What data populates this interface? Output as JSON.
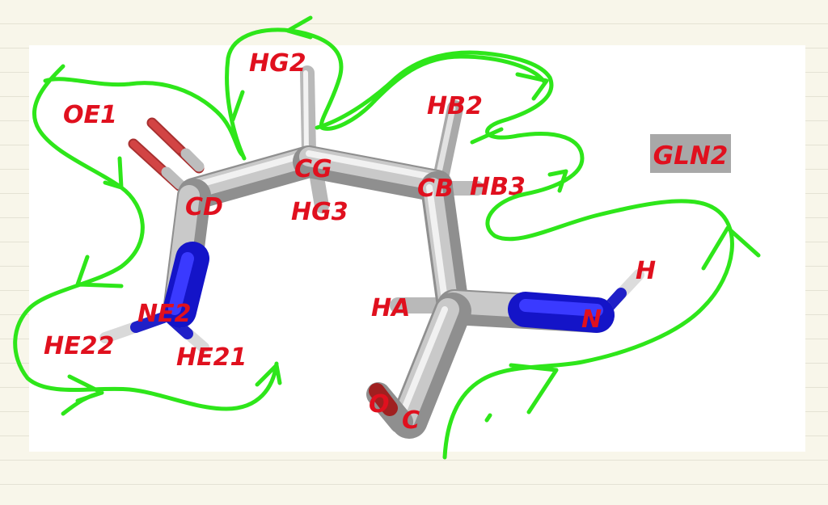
{
  "residue_label": "GLN2",
  "atoms": {
    "oe1": "OE1",
    "hg2": "HG2",
    "hb2": "HB2",
    "cd": "CD",
    "cg": "CG",
    "cb": "CB",
    "hb3": "HB3",
    "hg3": "HG3",
    "ne2": "NE2",
    "he22": "HE22",
    "he21": "HE21",
    "ha": "HA",
    "h": "H",
    "n": "N",
    "o": "O",
    "c": "C"
  },
  "colors": {
    "carbon": "#c8c8c8",
    "nitrogen": "#1a1ad6",
    "oxygen": "#c03030",
    "hydrogen": "#e6e6e6",
    "label": "#e0101e",
    "annotation": "#2ee61a",
    "label_box": "#a8a8a8"
  }
}
